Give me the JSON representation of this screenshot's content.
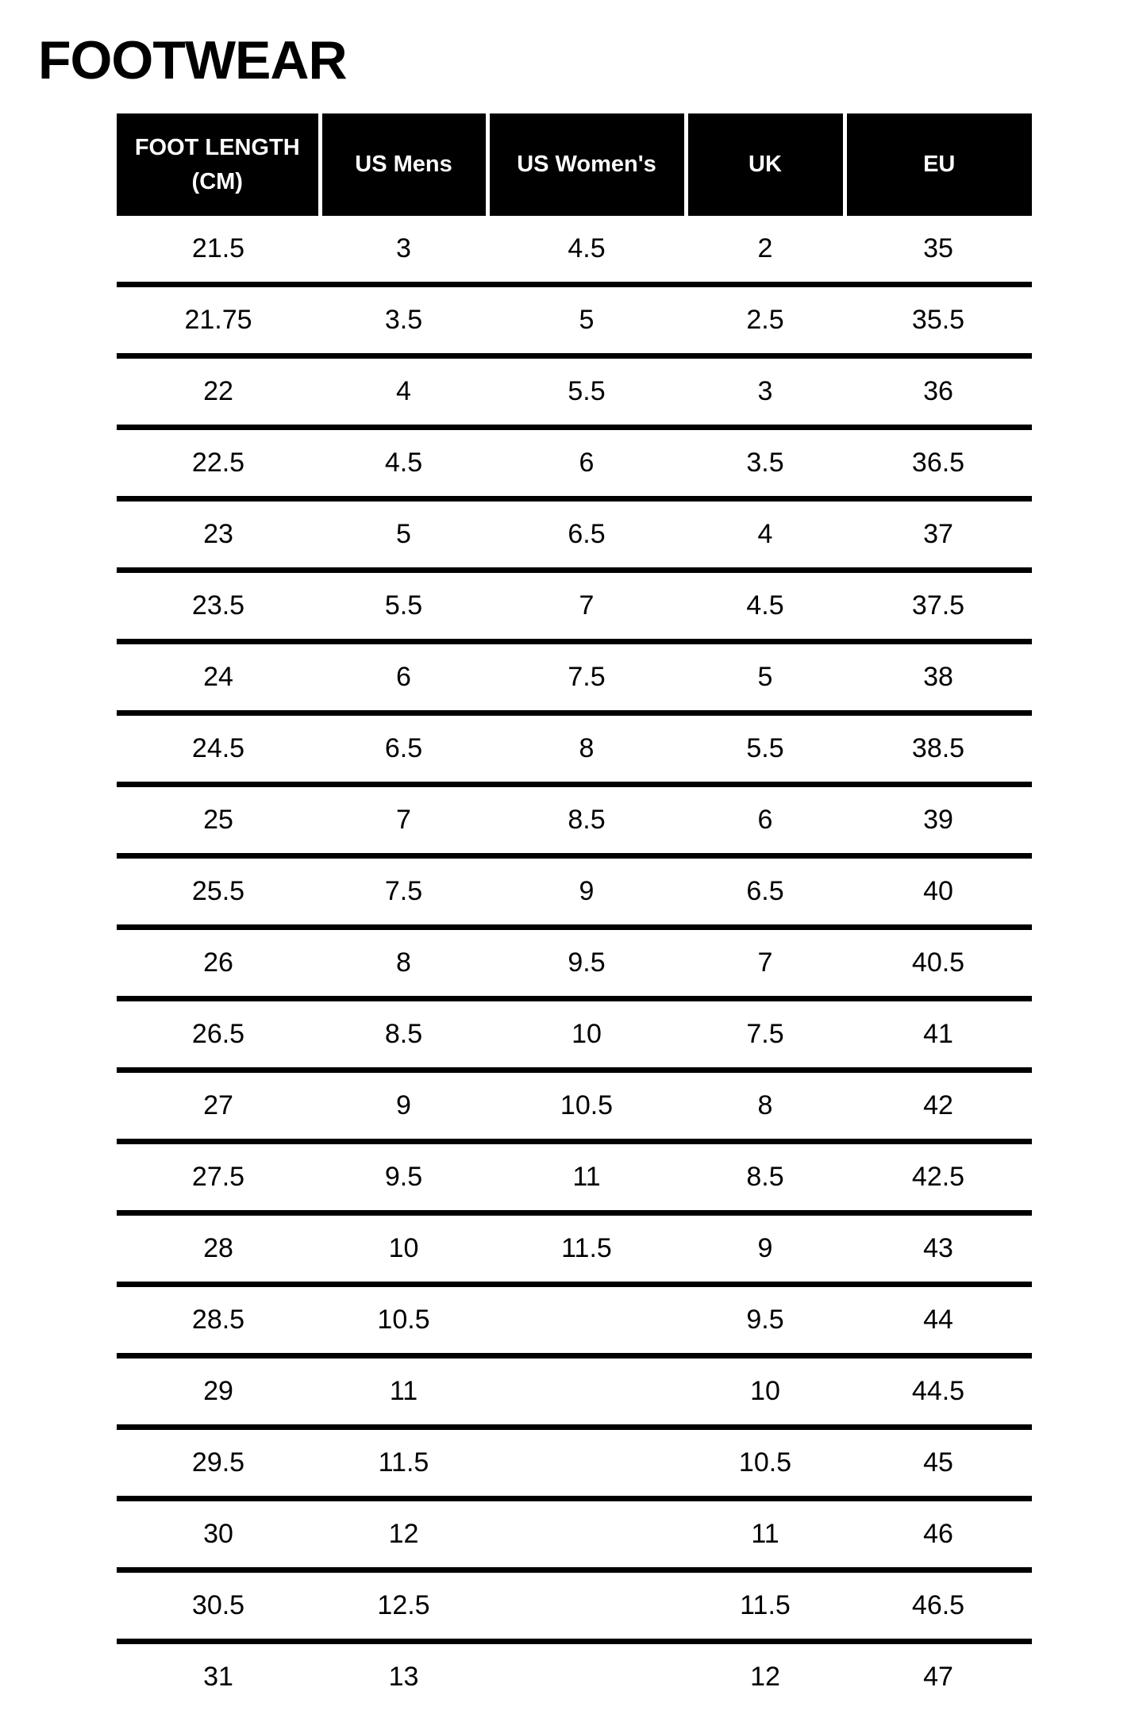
{
  "page": {
    "title": "FOOTWEAR"
  },
  "colors": {
    "background": "#ffffff",
    "header_background": "#000000",
    "header_text": "#ffffff",
    "body_text": "#000000",
    "row_divider": "#000000",
    "header_divider": "#ffffff"
  },
  "table": {
    "headers": [
      "FOOT LENGTH\n(CM)",
      "US Mens",
      "US Women's",
      "UK",
      "EU"
    ]
  },
  "chart_data": {
    "type": "table",
    "title": "FOOTWEAR",
    "columns": [
      "FOOT LENGTH (CM)",
      "US Mens",
      "US Women's",
      "UK",
      "EU"
    ],
    "rows": [
      [
        21.5,
        3,
        4.5,
        2,
        35
      ],
      [
        21.75,
        3.5,
        5,
        2.5,
        35.5
      ],
      [
        22,
        4,
        5.5,
        3,
        36
      ],
      [
        22.5,
        4.5,
        6,
        3.5,
        36.5
      ],
      [
        23,
        5,
        6.5,
        4,
        37
      ],
      [
        23.5,
        5.5,
        7,
        4.5,
        37.5
      ],
      [
        24,
        6,
        7.5,
        5,
        38
      ],
      [
        24.5,
        6.5,
        8,
        5.5,
        38.5
      ],
      [
        25,
        7,
        8.5,
        6,
        39
      ],
      [
        25.5,
        7.5,
        9,
        6.5,
        40
      ],
      [
        26,
        8,
        9.5,
        7,
        40.5
      ],
      [
        26.5,
        8.5,
        10,
        7.5,
        41
      ],
      [
        27,
        9,
        10.5,
        8,
        42
      ],
      [
        27.5,
        9.5,
        11,
        8.5,
        42.5
      ],
      [
        28,
        10,
        11.5,
        9,
        43
      ],
      [
        28.5,
        10.5,
        null,
        9.5,
        44
      ],
      [
        29,
        11,
        null,
        10,
        44.5
      ],
      [
        29.5,
        11.5,
        null,
        10.5,
        45
      ],
      [
        30,
        12,
        null,
        11,
        46
      ],
      [
        30.5,
        12.5,
        null,
        11.5,
        46.5
      ],
      [
        31,
        13,
        null,
        12,
        47
      ]
    ]
  }
}
